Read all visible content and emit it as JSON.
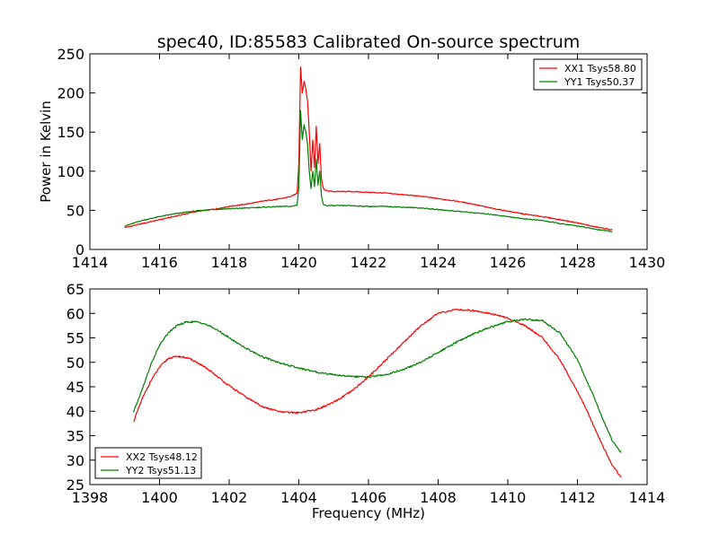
{
  "figure": {
    "title": "spec40, ID:85583 Calibrated On-source spectrum"
  },
  "chart_data": [
    {
      "type": "line",
      "title": "spec40, ID:85583 Calibrated On-source spectrum",
      "xlabel": "",
      "ylabel": "Power in Kelvin",
      "xlim": [
        1414,
        1430
      ],
      "ylim": [
        0,
        250
      ],
      "xticks": [
        "1414",
        "1416",
        "1418",
        "1420",
        "1422",
        "1424",
        "1426",
        "1428",
        "1430"
      ],
      "yticks": [
        "0",
        "50",
        "100",
        "150",
        "200",
        "250"
      ],
      "grid": false,
      "legend_position": "top-right",
      "series": [
        {
          "name": "XX1 Tsys58.80",
          "color": "#ff0000",
          "x": [
            1415.0,
            1415.5,
            1416.0,
            1416.5,
            1417.0,
            1417.5,
            1418.0,
            1418.5,
            1419.0,
            1419.5,
            1419.8,
            1419.95,
            1420.0,
            1420.05,
            1420.1,
            1420.15,
            1420.2,
            1420.25,
            1420.3,
            1420.35,
            1420.4,
            1420.45,
            1420.5,
            1420.55,
            1420.6,
            1420.65,
            1420.7,
            1420.75,
            1420.8,
            1421.0,
            1421.5,
            1422.0,
            1422.5,
            1423.0,
            1423.5,
            1424.0,
            1424.5,
            1425.0,
            1425.5,
            1426.0,
            1426.5,
            1427.0,
            1427.5,
            1428.0,
            1428.5,
            1429.0
          ],
          "y": [
            28,
            33,
            38,
            43,
            48,
            51,
            55,
            58,
            62,
            65,
            68,
            72,
            110,
            233,
            200,
            215,
            205,
            190,
            150,
            100,
            140,
            105,
            158,
            110,
            135,
            90,
            78,
            76,
            75,
            74,
            74,
            73,
            72,
            70,
            68,
            65,
            62,
            58,
            53,
            49,
            45,
            42,
            38,
            34,
            29,
            25
          ]
        },
        {
          "name": "YY1 Tsys50.37",
          "color": "#008000",
          "x": [
            1415.0,
            1415.5,
            1416.0,
            1416.5,
            1417.0,
            1417.5,
            1418.0,
            1418.5,
            1419.0,
            1419.5,
            1419.8,
            1419.95,
            1420.0,
            1420.05,
            1420.1,
            1420.15,
            1420.2,
            1420.25,
            1420.3,
            1420.35,
            1420.4,
            1420.45,
            1420.5,
            1420.55,
            1420.6,
            1420.65,
            1420.7,
            1420.75,
            1420.8,
            1421.0,
            1421.5,
            1422.0,
            1422.5,
            1423.0,
            1423.5,
            1424.0,
            1424.5,
            1425.0,
            1425.5,
            1426.0,
            1426.5,
            1427.0,
            1427.5,
            1428.0,
            1428.5,
            1429.0
          ],
          "y": [
            30,
            37,
            42,
            46,
            49,
            51,
            52,
            53,
            54,
            55,
            55,
            57,
            80,
            177,
            140,
            160,
            150,
            135,
            100,
            78,
            100,
            80,
            115,
            82,
            100,
            68,
            58,
            57,
            56,
            56,
            56,
            55,
            55,
            54,
            53,
            51,
            49,
            47,
            45,
            42,
            39,
            37,
            33,
            30,
            26,
            23
          ]
        }
      ]
    },
    {
      "type": "line",
      "title": "",
      "xlabel": "Frequency (MHz)",
      "ylabel": "",
      "xlim": [
        1398,
        1414
      ],
      "ylim": [
        25,
        65
      ],
      "xticks": [
        "1398",
        "1400",
        "1402",
        "1404",
        "1406",
        "1408",
        "1410",
        "1412",
        "1414"
      ],
      "yticks": [
        "25",
        "30",
        "35",
        "40",
        "45",
        "50",
        "55",
        "60",
        "65"
      ],
      "grid": false,
      "legend_position": "bottom-left",
      "series": [
        {
          "name": "XX2 Tsys48.12",
          "color": "#ff0000",
          "x": [
            1399.25,
            1399.5,
            1399.75,
            1400.0,
            1400.25,
            1400.5,
            1400.75,
            1401.0,
            1401.25,
            1401.5,
            1401.75,
            1402.0,
            1402.5,
            1403.0,
            1403.5,
            1404.0,
            1404.5,
            1405.0,
            1405.5,
            1406.0,
            1406.5,
            1407.0,
            1407.5,
            1408.0,
            1408.5,
            1409.0,
            1409.5,
            1410.0,
            1410.5,
            1411.0,
            1411.5,
            1412.0,
            1412.25,
            1412.5,
            1412.75,
            1413.0,
            1413.25
          ],
          "y": [
            37.8,
            42.5,
            46.2,
            49.0,
            50.8,
            51.2,
            51.0,
            50.3,
            49.2,
            48.0,
            46.6,
            45.2,
            42.8,
            40.8,
            39.8,
            39.7,
            40.3,
            41.8,
            44.0,
            47.0,
            50.5,
            54.0,
            57.5,
            60.0,
            60.8,
            60.6,
            60.0,
            59.0,
            57.5,
            55.0,
            50.5,
            44.0,
            40.5,
            36.5,
            32.5,
            29.0,
            26.5
          ]
        },
        {
          "name": "YY2 Tsys51.13",
          "color": "#008000",
          "x": [
            1399.25,
            1399.5,
            1399.75,
            1400.0,
            1400.25,
            1400.5,
            1400.75,
            1401.0,
            1401.25,
            1401.5,
            1401.75,
            1402.0,
            1402.5,
            1403.0,
            1403.5,
            1404.0,
            1404.5,
            1405.0,
            1405.5,
            1406.0,
            1406.5,
            1407.0,
            1407.5,
            1408.0,
            1408.5,
            1409.0,
            1409.5,
            1410.0,
            1410.5,
            1411.0,
            1411.5,
            1412.0,
            1412.25,
            1412.5,
            1412.75,
            1413.0,
            1413.25
          ],
          "y": [
            39.8,
            44.5,
            49.5,
            53.5,
            56.0,
            57.5,
            58.2,
            58.3,
            58.0,
            57.2,
            56.2,
            55.0,
            52.8,
            51.0,
            49.8,
            48.8,
            48.0,
            47.5,
            47.1,
            47.0,
            47.5,
            48.5,
            50.0,
            52.0,
            54.0,
            55.8,
            57.2,
            58.3,
            58.8,
            58.5,
            56.0,
            50.5,
            46.5,
            42.5,
            38.0,
            34.0,
            31.5
          ]
        }
      ]
    }
  ]
}
